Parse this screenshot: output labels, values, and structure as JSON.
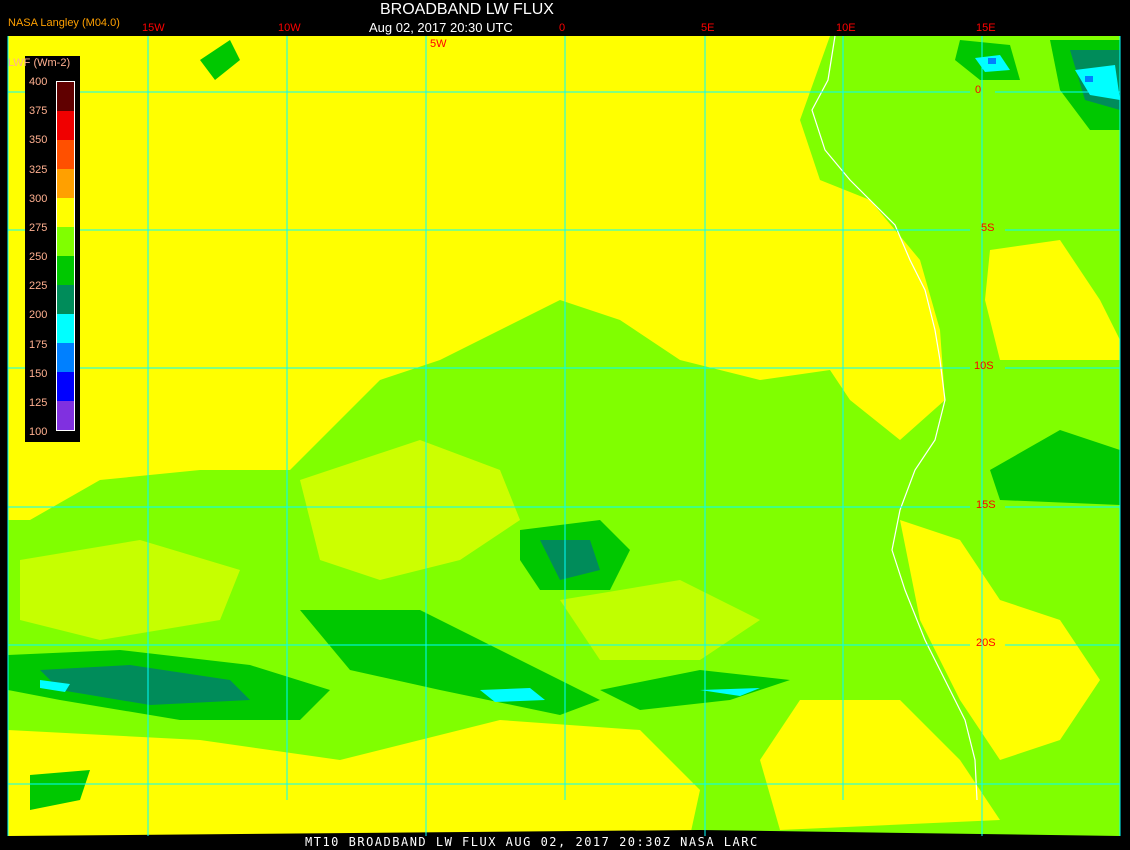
{
  "header": {
    "title": "BROADBAND LW FLUX",
    "subtitle": "Aug 02, 2017 20:30 UTC",
    "credit": "NASA Langley (M04.0)"
  },
  "footer": "MT10  BROADBAND LW FLUX   AUG 02, 2017 20:30Z   NASA LARC",
  "longitude_labels": [
    "15W",
    "10W",
    "5W",
    "0",
    "5E",
    "10E",
    "15E"
  ],
  "latitude_labels": [
    "0",
    "5S",
    "10S",
    "15S",
    "20S"
  ],
  "colorbar": {
    "unit": "LWF (Wm-2)",
    "ticks": [
      "400",
      "375",
      "350",
      "325",
      "300",
      "275",
      "250",
      "225",
      "200",
      "175",
      "150",
      "125",
      "100"
    ],
    "colors": [
      "#600000",
      "#f00000",
      "#ff5000",
      "#ffa000",
      "#ffff00",
      "#80ff00",
      "#00c800",
      "#008c5a",
      "#00ffff",
      "#0080ff",
      "#0000ff",
      "#8030e0"
    ]
  },
  "colors": {
    "grid": "#00ffff",
    "coastline": "#ffffff",
    "label": "#ff0000"
  }
}
